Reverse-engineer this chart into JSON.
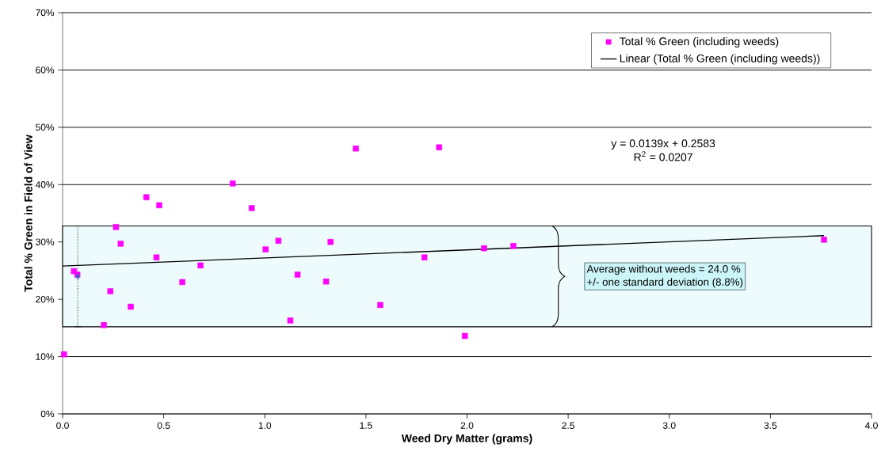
{
  "chart_data": {
    "type": "scatter",
    "xlabel": "Weed Dry Matter (grams)",
    "ylabel": "Total % Green in Field of View",
    "xlim": [
      0,
      4
    ],
    "ylim": [
      0,
      70
    ],
    "xticks": [
      {
        "value": 0,
        "label": "0.0"
      },
      {
        "value": 0.5,
        "label": "0.5"
      },
      {
        "value": 1,
        "label": "1.0"
      },
      {
        "value": 1.5,
        "label": "1.5"
      },
      {
        "value": 2,
        "label": "2.0"
      },
      {
        "value": 2.5,
        "label": "2.5"
      },
      {
        "value": 3,
        "label": "3.0"
      },
      {
        "value": 3.5,
        "label": "3.5"
      },
      {
        "value": 4,
        "label": "4.0"
      }
    ],
    "yticks": [
      {
        "value": 0,
        "label": "0%"
      },
      {
        "value": 10,
        "label": "10%"
      },
      {
        "value": 20,
        "label": "20%"
      },
      {
        "value": 30,
        "label": "30%"
      },
      {
        "value": 40,
        "label": "40%"
      },
      {
        "value": 50,
        "label": "50%"
      },
      {
        "value": 60,
        "label": "60%"
      },
      {
        "value": 70,
        "label": "70%"
      }
    ],
    "grid": "y",
    "legend": "top right",
    "series": [
      {
        "name": "Total % Green (including weeds)",
        "color": "#ff00ff",
        "marker": "square",
        "x": [
          0.007,
          0.056,
          0.073,
          0.204,
          0.236,
          0.264,
          0.287,
          0.337,
          0.414,
          0.464,
          0.478,
          0.592,
          0.682,
          0.841,
          0.935,
          1.004,
          1.067,
          1.126,
          1.162,
          1.303,
          1.325,
          1.45,
          1.571,
          1.789,
          1.862,
          1.989,
          2.084,
          2.229,
          3.765
        ],
        "values": [
          10.4,
          24.9,
          24.3,
          15.5,
          21.4,
          32.6,
          29.7,
          18.7,
          37.8,
          27.3,
          36.4,
          23.0,
          25.9,
          40.2,
          35.9,
          28.7,
          30.2,
          16.3,
          24.3,
          23.1,
          30.0,
          46.3,
          19.0,
          27.3,
          46.5,
          13.6,
          28.9,
          29.3,
          30.4
        ]
      },
      {
        "type": "line",
        "name": "Linear (Total % Green (including weeds))",
        "color": "#000000",
        "marker": "none",
        "line_style": "solid",
        "x": [
          0,
          3.765
        ],
        "values": [
          25.8,
          31.1
        ]
      },
      {
        "color": "#4060c0",
        "marker": "diamond",
        "x": [
          0.075
        ],
        "values": [
          24.0
        ],
        "errors": [
          8.8
        ]
      }
    ],
    "bands": [
      {
        "axis": "y",
        "from": 15.2,
        "to": 32.8,
        "label": "Average without weeds = 24.0 %",
        "color": "#eefbfc"
      }
    ],
    "annotations": [
      "+/- one standard deviation (8.8%)",
      "y = 0.0139x + 0.2583",
      "R$^{2}$ = 0.0207"
    ]
  }
}
